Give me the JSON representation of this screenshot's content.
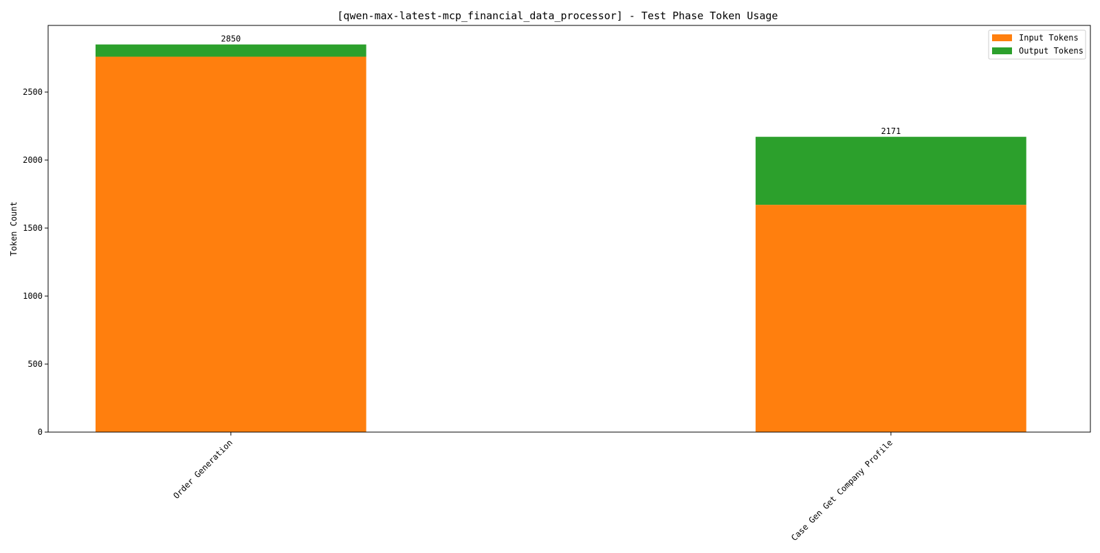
{
  "chart_data": {
    "type": "bar",
    "stacked": true,
    "title": "[qwen-max-latest-mcp_financial_data_processor] - Test Phase Token Usage",
    "xlabel": "",
    "ylabel": "Token Count",
    "categories": [
      "Order Generation",
      "Case Gen Get Company Profile"
    ],
    "series": [
      {
        "name": "Input Tokens",
        "color": "#ff7f0e",
        "values": [
          2760,
          1671
        ]
      },
      {
        "name": "Output Tokens",
        "color": "#2ca02c",
        "values": [
          90,
          500
        ]
      }
    ],
    "totals": [
      "2850",
      "2171"
    ],
    "ylim": [
      0,
      2990
    ],
    "yticks": [
      0,
      500,
      1000,
      1500,
      2000,
      2500
    ],
    "grid": false,
    "legend_position": "top-right"
  }
}
